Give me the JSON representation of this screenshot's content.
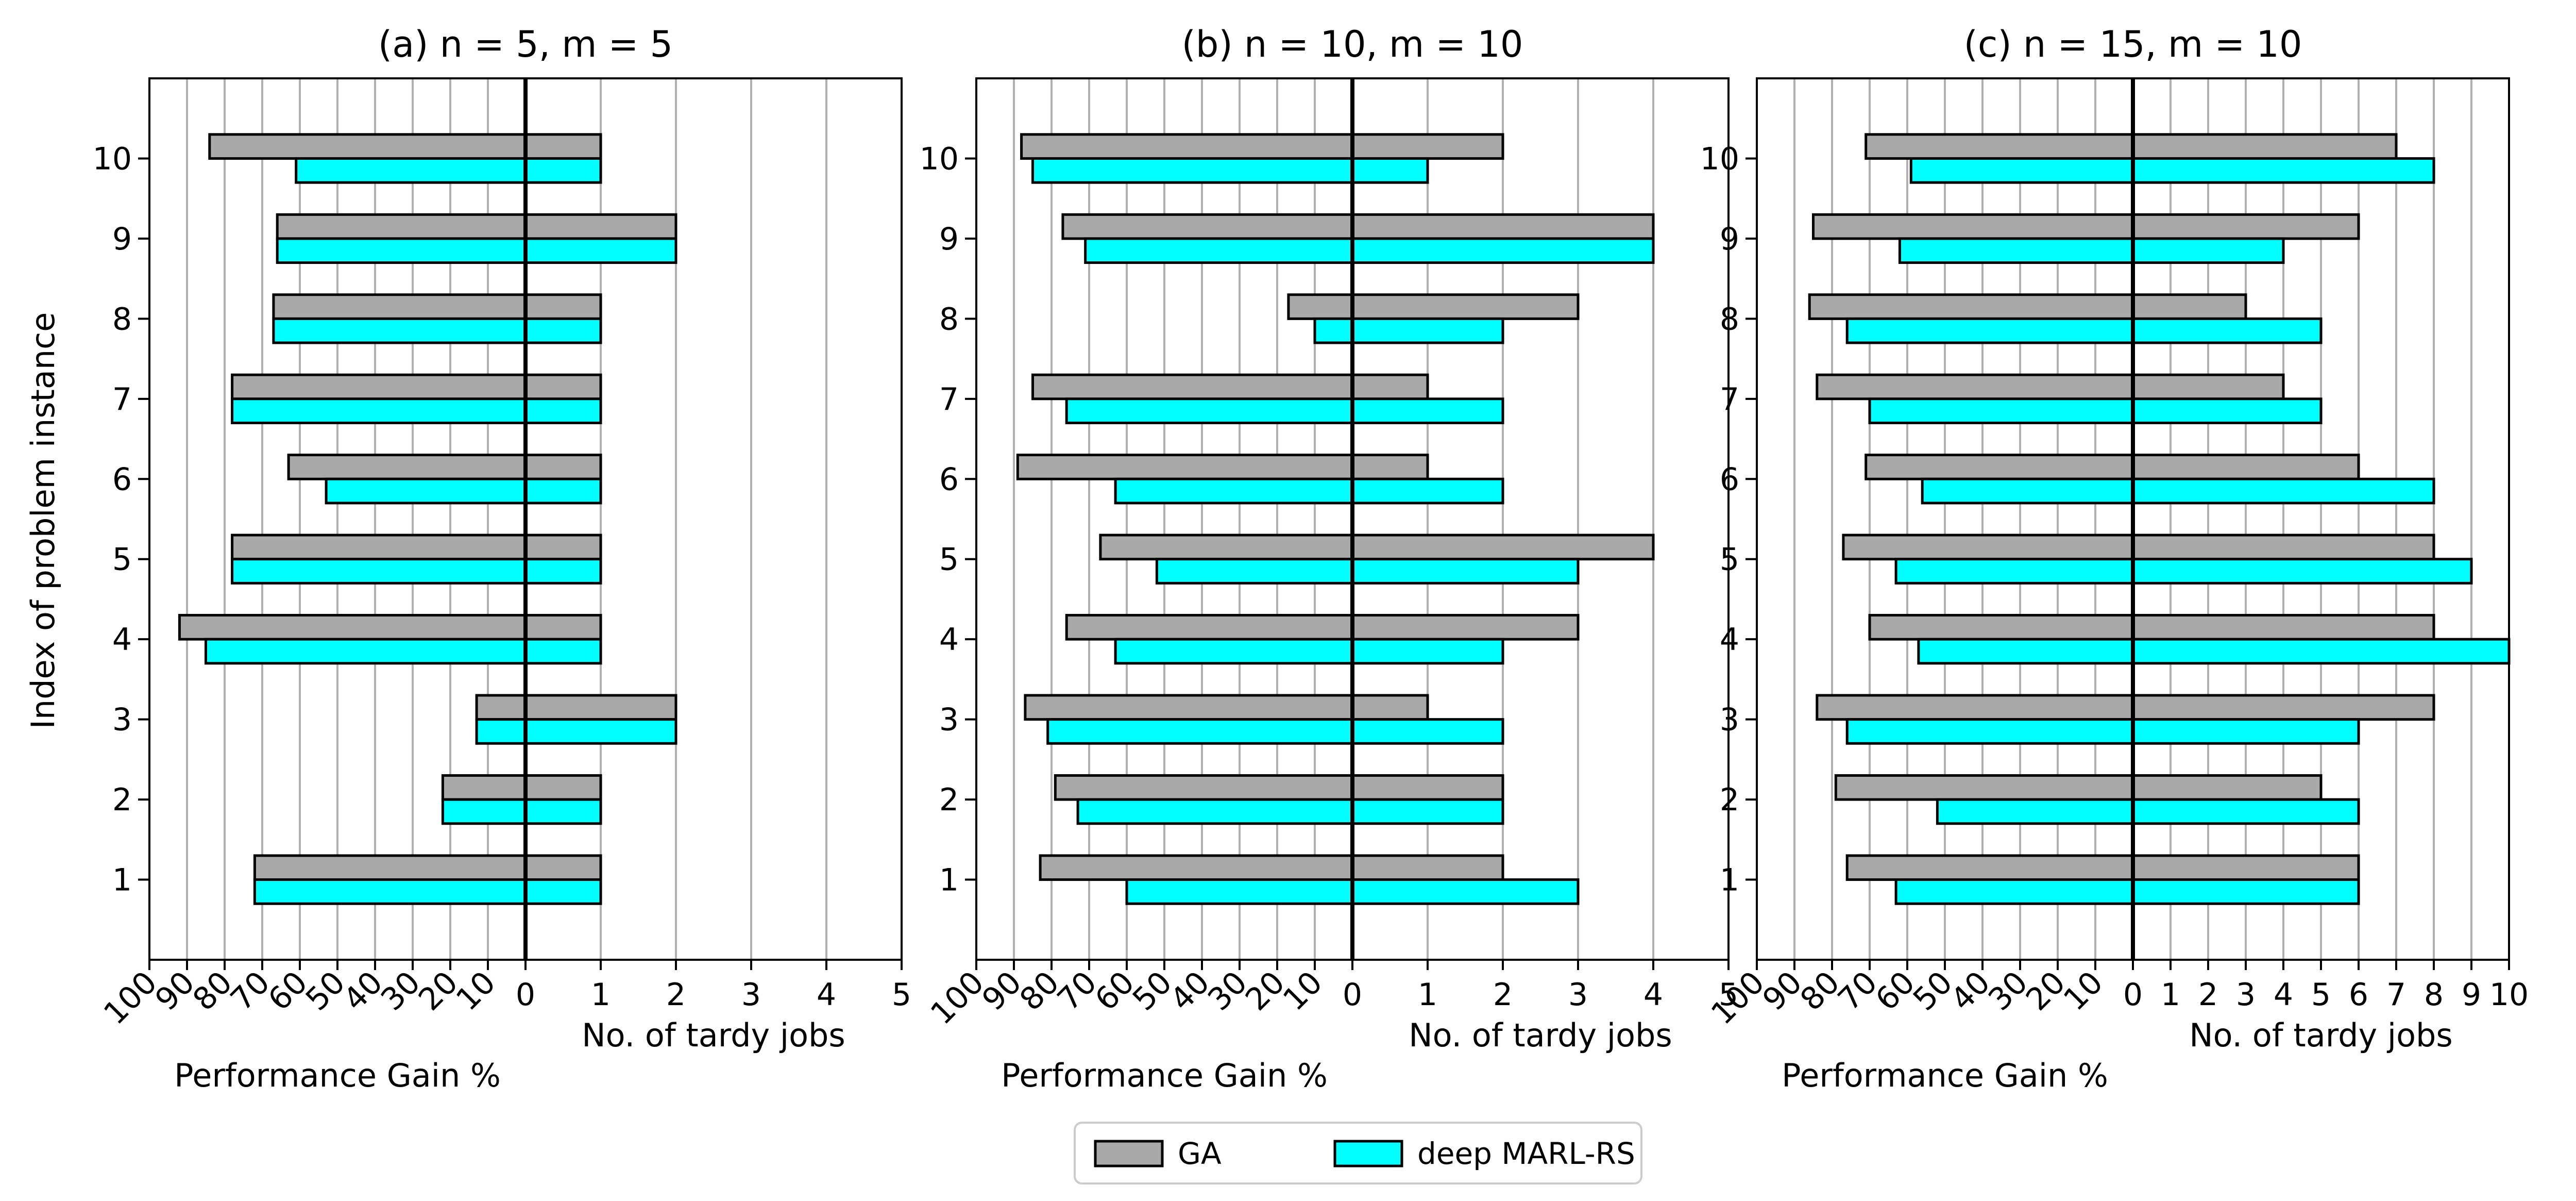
{
  "figure": {
    "ylabel": "Index of problem instance",
    "legend": {
      "placement": "bottom-center",
      "entries": [
        {
          "name": "GA",
          "color": "#a9a9a9"
        },
        {
          "name": "deep MARL-RS",
          "color": "#00ffff"
        }
      ]
    }
  },
  "chart_data": [
    {
      "type": "bar",
      "title": "(a) n = 5, m = 5",
      "categories": [
        "1",
        "2",
        "3",
        "4",
        "5",
        "6",
        "7",
        "8",
        "9",
        "10"
      ],
      "left_axis": {
        "xlabel": "Performance Gain %",
        "ticks": [
          "100",
          "90",
          "80",
          "70",
          "60",
          "50",
          "40",
          "30",
          "20",
          "10",
          "0"
        ],
        "xlim": [
          100,
          0
        ]
      },
      "right_axis": {
        "xlabel": "No. of tardy jobs",
        "ticks": [
          "0",
          "1",
          "2",
          "3",
          "4",
          "5"
        ],
        "xlim": [
          0,
          5
        ]
      },
      "ylabel": "Index of problem instance",
      "grid": true,
      "series": [
        {
          "name": "GA",
          "color": "#a9a9a9",
          "performance_gain": [
            72,
            22,
            13,
            92,
            78,
            63,
            78,
            67,
            66,
            84
          ],
          "tardy_jobs": [
            1,
            1,
            2,
            1,
            1,
            1,
            1,
            1,
            2,
            1
          ]
        },
        {
          "name": "deep MARL-RS",
          "color": "#00ffff",
          "performance_gain": [
            72,
            22,
            13,
            85,
            78,
            53,
            78,
            67,
            66,
            61
          ],
          "tardy_jobs": [
            1,
            1,
            2,
            1,
            1,
            1,
            1,
            1,
            2,
            1
          ]
        }
      ]
    },
    {
      "type": "bar",
      "title": "(b) n = 10, m = 10",
      "categories": [
        "1",
        "2",
        "3",
        "4",
        "5",
        "6",
        "7",
        "8",
        "9",
        "10"
      ],
      "left_axis": {
        "xlabel": "Performance Gain %",
        "ticks": [
          "100",
          "90",
          "80",
          "70",
          "60",
          "50",
          "40",
          "30",
          "20",
          "10",
          "0"
        ],
        "xlim": [
          100,
          0
        ]
      },
      "right_axis": {
        "xlabel": "No. of tardy jobs",
        "ticks": [
          "0",
          "1",
          "2",
          "3",
          "4",
          "5"
        ],
        "xlim": [
          0,
          5
        ]
      },
      "grid": true,
      "series": [
        {
          "name": "GA",
          "color": "#a9a9a9",
          "performance_gain": [
            83,
            79,
            87,
            76,
            67,
            89,
            85,
            17,
            77,
            88
          ],
          "tardy_jobs": [
            2,
            2,
            1,
            3,
            4,
            1,
            1,
            3,
            4,
            2
          ]
        },
        {
          "name": "deep MARL-RS",
          "color": "#00ffff",
          "performance_gain": [
            60,
            73,
            81,
            63,
            52,
            63,
            76,
            10,
            71,
            85
          ],
          "tardy_jobs": [
            3,
            2,
            2,
            2,
            3,
            2,
            2,
            2,
            4,
            1
          ]
        }
      ]
    },
    {
      "type": "bar",
      "title": "(c) n = 15, m = 10",
      "categories": [
        "1",
        "2",
        "3",
        "4",
        "5",
        "6",
        "7",
        "8",
        "9",
        "10"
      ],
      "left_axis": {
        "xlabel": "Performance Gain %",
        "ticks": [
          "100",
          "90",
          "80",
          "70",
          "60",
          "50",
          "40",
          "30",
          "20",
          "10",
          "0"
        ],
        "xlim": [
          100,
          0
        ]
      },
      "right_axis": {
        "xlabel": "No. of tardy jobs",
        "ticks": [
          "0",
          "1",
          "2",
          "3",
          "4",
          "5",
          "6",
          "7",
          "8",
          "9",
          "10"
        ],
        "xlim": [
          0,
          10
        ]
      },
      "grid": true,
      "series": [
        {
          "name": "GA",
          "color": "#a9a9a9",
          "performance_gain": [
            76,
            79,
            84,
            70,
            77,
            71,
            84,
            86,
            85,
            71
          ],
          "tardy_jobs": [
            6,
            5,
            8,
            8,
            8,
            6,
            4,
            3,
            6,
            7
          ]
        },
        {
          "name": "deep MARL-RS",
          "color": "#00ffff",
          "performance_gain": [
            63,
            52,
            76,
            57,
            63,
            56,
            70,
            76,
            62,
            59
          ],
          "tardy_jobs": [
            6,
            6,
            6,
            10,
            9,
            8,
            5,
            5,
            4,
            8
          ]
        }
      ]
    }
  ]
}
